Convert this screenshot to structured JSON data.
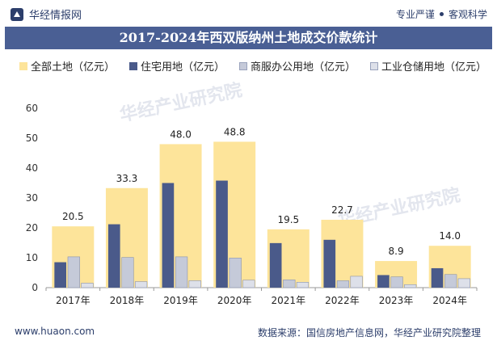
{
  "header": {
    "brand": "华经情报网",
    "slogan_left": "专业严谨",
    "slogan_right": "客观科学"
  },
  "title": "2017-2024年西双版纳州土地成交价款统计",
  "footer": {
    "website": "www.huaon.com",
    "source": "数据来源：国信房地产信息网，华经产业研究院整理"
  },
  "watermark": "华经产业研究院",
  "watermark_url": "www.huaon.com",
  "colors": {
    "total": "#fde49a",
    "residential": "#4a5a8a",
    "commercial": "#c5cad9",
    "industrial": "#dde0e9",
    "title_bg": "#4a5f94"
  },
  "chart_data": {
    "type": "bar",
    "categories": [
      "2017年",
      "2018年",
      "2019年",
      "2020年",
      "2021年",
      "2022年",
      "2023年",
      "2024年"
    ],
    "series": [
      {
        "name": "全部土地（亿元）",
        "values": [
          20.5,
          33.3,
          48.0,
          48.8,
          19.5,
          22.7,
          8.9,
          14.0
        ],
        "labels": [
          "20.5",
          "33.3",
          "48.0",
          "48.8",
          "19.5",
          "22.7",
          "8.9",
          "14.0"
        ]
      },
      {
        "name": "住宅用地（亿元）",
        "values": [
          8.5,
          21.2,
          35.0,
          35.8,
          14.9,
          16.0,
          4.2,
          6.5
        ]
      },
      {
        "name": "商服办公用地（亿元）",
        "values": [
          10.3,
          10.1,
          10.3,
          9.9,
          2.6,
          2.3,
          3.6,
          4.4
        ]
      },
      {
        "name": "工业仓储用地（亿元）",
        "values": [
          1.5,
          2.0,
          2.3,
          2.5,
          1.8,
          3.8,
          1.0,
          3.0
        ]
      }
    ],
    "ylim": [
      0,
      60
    ],
    "yticks": [
      0,
      10,
      20,
      30,
      40,
      50,
      60
    ],
    "grid": false,
    "legend": "top"
  }
}
